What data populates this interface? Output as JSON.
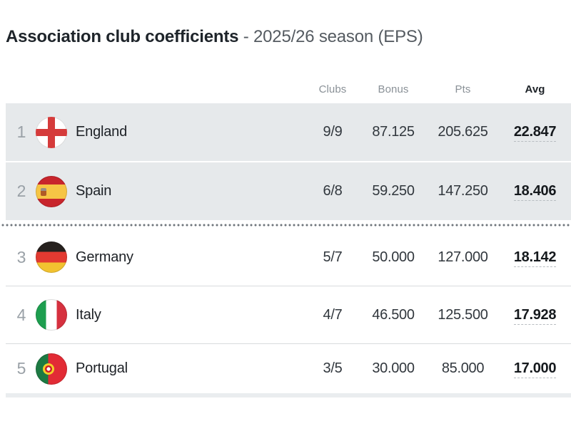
{
  "title": {
    "main": "Association club coefficients",
    "sub": "- 2025/26 season (EPS)"
  },
  "table": {
    "columns": [
      {
        "key": "clubs",
        "label": "Clubs"
      },
      {
        "key": "bonus",
        "label": "Bonus"
      },
      {
        "key": "pts",
        "label": "Pts"
      },
      {
        "key": "avg",
        "label": "Avg"
      }
    ],
    "separator_after_rank": 2,
    "rows": [
      {
        "rank": "1",
        "country": "England",
        "flag": "england",
        "clubs": "9/9",
        "bonus": "87.125",
        "pts": "205.625",
        "avg": "22.847",
        "highlighted": true
      },
      {
        "rank": "2",
        "country": "Spain",
        "flag": "spain",
        "clubs": "6/8",
        "bonus": "59.250",
        "pts": "147.250",
        "avg": "18.406",
        "highlighted": true
      },
      {
        "rank": "3",
        "country": "Germany",
        "flag": "germany",
        "clubs": "5/7",
        "bonus": "50.000",
        "pts": "127.000",
        "avg": "18.142",
        "highlighted": false
      },
      {
        "rank": "4",
        "country": "Italy",
        "flag": "italy",
        "clubs": "4/7",
        "bonus": "46.500",
        "pts": "125.500",
        "avg": "17.928",
        "highlighted": false
      },
      {
        "rank": "5",
        "country": "Portugal",
        "flag": "portugal",
        "clubs": "3/5",
        "bonus": "30.000",
        "pts": "85.000",
        "avg": "17.000",
        "highlighted": false
      }
    ]
  },
  "colors": {
    "highlight_row_bg": "#e6e9eb",
    "separator_dots": "#6f767c",
    "row_border": "#d8dbdd",
    "title_main": "#1e242a",
    "title_sub": "#555b61"
  }
}
